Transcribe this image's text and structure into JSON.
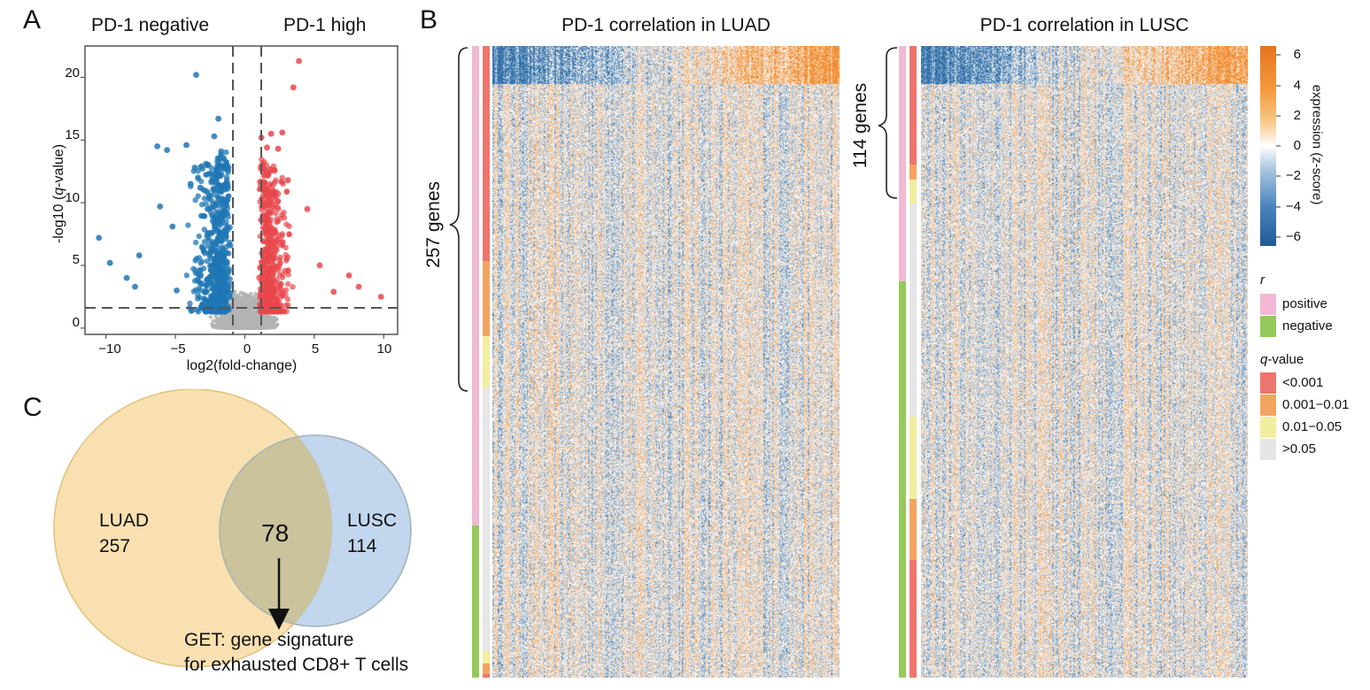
{
  "panels": {
    "a": "A",
    "b": "B",
    "c": "C"
  },
  "volcano": {
    "title_left": "PD-1 negative",
    "title_right": "PD-1 high",
    "xlabel": "log2(fold-change)",
    "ylabel_pre": "-log10 (",
    "ylabel_q": "q",
    "ylabel_post": "-value)",
    "xticks": [
      "−10",
      "−5",
      "0",
      "5",
      "10"
    ],
    "yticks": [
      "0",
      "5",
      "10",
      "15",
      "20"
    ]
  },
  "chart_data": {
    "type": "scatter",
    "xlabel": "log2(fold-change)",
    "ylabel": "-log10 (q-value)",
    "xlim": [
      -11.5,
      11
    ],
    "ylim": [
      -0.5,
      22.5
    ],
    "thresholds": {
      "x": [
        -1,
        1
      ],
      "y": 1.3
    },
    "series": [
      {
        "name": "PD-1 negative",
        "color": "#1f77b4",
        "points": [
          [
            -10.5,
            7.2
          ],
          [
            -9.7,
            5.2
          ],
          [
            -8.5,
            4.0
          ],
          [
            -7.9,
            3.3
          ],
          [
            -7.6,
            5.8
          ],
          [
            -6.3,
            14.5
          ],
          [
            -6.1,
            9.7
          ],
          [
            -5.6,
            14.2
          ],
          [
            -5.2,
            8.1
          ],
          [
            -4.9,
            3.0
          ],
          [
            -4.2,
            14.6
          ],
          [
            -3.9,
            11.5
          ],
          [
            -3.6,
            12.8
          ],
          [
            -3.5,
            20.2
          ],
          [
            -3.2,
            11.2
          ],
          [
            -2.7,
            13.0
          ],
          [
            -2.2,
            15.3
          ],
          [
            -1.9,
            16.7
          ],
          [
            -1.7,
            14.1
          ]
        ]
      },
      {
        "name": "PD-1 high",
        "color": "#e8474c",
        "points": [
          [
            1.2,
            15.2
          ],
          [
            1.6,
            14.4
          ],
          [
            1.9,
            15.5
          ],
          [
            2.4,
            14.3
          ],
          [
            2.7,
            15.6
          ],
          [
            3.1,
            11.8
          ],
          [
            3.5,
            19.2
          ],
          [
            3.9,
            21.3
          ],
          [
            4.5,
            9.5
          ],
          [
            5.4,
            5.0
          ],
          [
            6.4,
            2.9
          ],
          [
            7.5,
            4.2
          ],
          [
            8.2,
            3.3
          ],
          [
            9.8,
            2.5
          ]
        ]
      },
      {
        "name": "not significant",
        "color": "#b3b3b3",
        "points": []
      }
    ]
  },
  "heatmaps": {
    "luad_title": "PD-1 correlation in LUAD",
    "lusc_title": "PD-1 correlation in LUSC",
    "luad_brace": "257 genes",
    "lusc_brace": "114 genes"
  },
  "legend": {
    "expression_title": "expression (z-score)",
    "expression_ticks": [
      "6",
      "4",
      "2",
      "0",
      "−2",
      "−4",
      "−6"
    ],
    "r_title": "r",
    "r_items": [
      {
        "label": "positive",
        "color": "#f2b8d4"
      },
      {
        "label": "negative",
        "color": "#95c95b"
      }
    ],
    "q_title_italic": "q",
    "q_title_rest": "-value",
    "q_items": [
      {
        "label": "<0.001",
        "color": "#ee756d"
      },
      {
        "label": "0.001−0.01",
        "color": "#f4a460"
      },
      {
        "label": "0.01−0.05",
        "color": "#f2ee9f"
      },
      {
        "label": ">0.05",
        "color": "#e6e6e6"
      }
    ]
  },
  "venn": {
    "luad_label": "LUAD",
    "luad_count": "257",
    "lusc_label": "LUSC",
    "lusc_count": "114",
    "overlap_count": "78",
    "get_line1": "GET: gene signature",
    "get_line2": "for exhausted CD8+ T cells"
  },
  "colors": {
    "blue": "#2f6ea8",
    "orange": "#f08a2b",
    "venn_luad": "#f6d99f",
    "venn_lusc": "#b7cfea",
    "venn_overlap": "#cbc39b"
  }
}
